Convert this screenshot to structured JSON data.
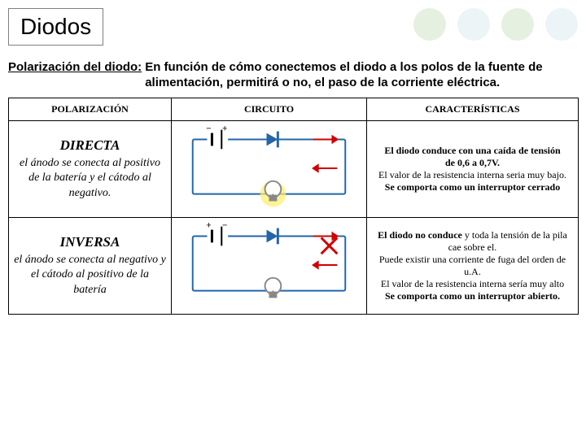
{
  "title": "Diodos",
  "intro": {
    "label": "Polarización del diodo:",
    "text": "En función de cómo conectemos el diodo a los polos de la fuente de alimentación, permitirá o no, el paso de la corriente eléctrica."
  },
  "headers": {
    "c1": "POLARIZACIÓN",
    "c2": "CIRCUITO",
    "c3": "CARACTERÍSTICAS"
  },
  "rows": [
    {
      "pol_title": "DIRECTA",
      "pol_desc": "el ánodo se conecta al positivo de la batería y el cátodo al negativo.",
      "car_l1_bold": "El diodo conduce con una caída de tensión",
      "car_l2_bold": "de 0,6 a 0,7V.",
      "car_l3": "El valor de la resistencia interna seria muy bajo.",
      "car_l4_bold": "Se comporta como un interruptor cerrado",
      "circuit": {
        "battery_left": "−",
        "battery_right": "+",
        "arrow_color": "#d00000",
        "glow": true,
        "cross": false
      }
    },
    {
      "pol_title": "INVERSA",
      "pol_desc": "el ánodo se conecta al negativo y el cátodo al positivo de la batería",
      "car_l1_boldpart": "El diodo no conduce",
      "car_l1_rest": " y toda la tensión de la pila cae sobre el.",
      "car_l2": "Puede existir una corriente de fuga del orden de u.A.",
      "car_l3": "El valor de la resistencia interna sería muy alto",
      "car_l4_bold": "Se comporta como un interruptor abierto.",
      "circuit": {
        "battery_left": "+",
        "battery_right": "−",
        "arrow_color": "#d00000",
        "glow": false,
        "cross": true
      }
    }
  ],
  "decor_colors": [
    "#e6f0e0",
    "#ecf4f8",
    "#e6f0e0",
    "#ecf4f8"
  ],
  "circuit_style": {
    "wire_color": "#2266aa",
    "diode_fill": "#2266aa",
    "bulb_stroke": "#888888",
    "glow_color": "#ffee66"
  }
}
